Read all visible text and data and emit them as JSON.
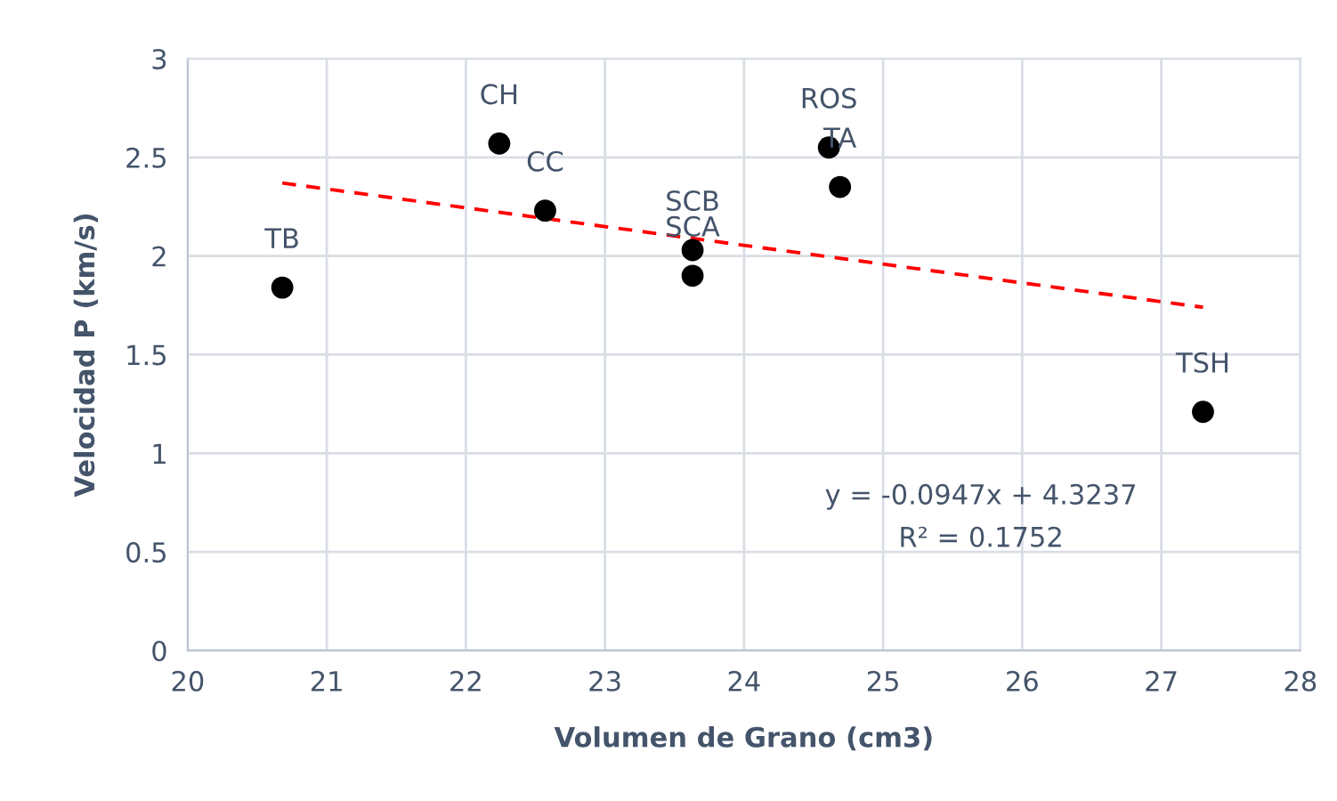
{
  "chart_data": {
    "type": "scatter",
    "xlabel": "Volumen de Grano (cm3)",
    "ylabel": "Velocidad P (km/s)",
    "xlim": [
      20,
      28
    ],
    "xticks": [
      20,
      21,
      22,
      23,
      24,
      25,
      26,
      27,
      28
    ],
    "ylim": [
      0,
      3
    ],
    "yticks": [
      0,
      0.5,
      1,
      1.5,
      2,
      2.5,
      3
    ],
    "grid": true,
    "marker": "circle",
    "series": [
      {
        "color": "#000000",
        "x": [
          20.68,
          22.24,
          22.57,
          23.63,
          23.63,
          24.61,
          24.69,
          27.3
        ],
        "values": [
          1.84,
          2.57,
          2.23,
          2.03,
          1.9,
          2.55,
          2.35,
          1.21
        ]
      },
      {
        "type": "line",
        "color": "#ff0000",
        "line_style": "dashed",
        "marker": "none",
        "x": [
          20.68,
          27.3
        ],
        "values": [
          2.37,
          1.74
        ]
      }
    ],
    "annotations": [
      {
        "text": "TB",
        "x": 20.68,
        "y": 1.84
      },
      {
        "text": "CH",
        "x": 22.24,
        "y": 2.57
      },
      {
        "text": "CC",
        "x": 22.57,
        "y": 2.23
      },
      {
        "text": "SCB",
        "x": 23.63,
        "y": 2.03
      },
      {
        "text": "SCA",
        "x": 23.63,
        "y": 1.9
      },
      {
        "text": "ROS",
        "x": 24.61,
        "y": 2.55
      },
      {
        "text": "TA",
        "x": 24.69,
        "y": 2.35
      },
      {
        "text": "TSH",
        "x": 27.3,
        "y": 1.21
      },
      "y = -0.0947x + 4.3237",
      "R² = 0.1752"
    ]
  }
}
